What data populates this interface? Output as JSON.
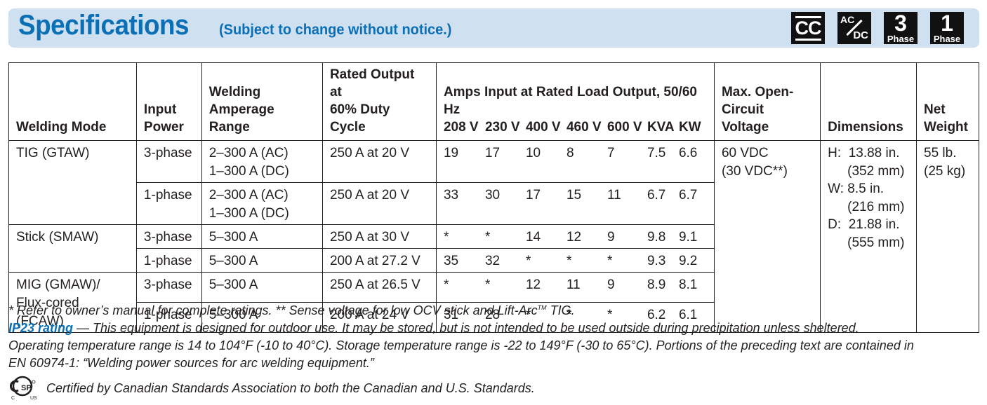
{
  "header": {
    "title": "Specifications",
    "subtitle": "(Subject to change without notice.)",
    "badges": {
      "cc": "CC",
      "ac": "AC",
      "dc": "DC",
      "three": "3",
      "one": "1",
      "phase": "Phase"
    }
  },
  "table": {
    "headers": {
      "mode": "Welding Mode",
      "input_1": "Input",
      "input_2": "Power",
      "range_1": "Welding",
      "range_2": "Amperage Range",
      "rated_1": "Rated Output at",
      "rated_2": "60% Duty Cycle",
      "amps": "Amps Input at Rated Load Output, 50/60 Hz",
      "volts": [
        "208 V",
        "230 V",
        "400 V",
        "460 V",
        "600 V",
        "KVA",
        "KW"
      ],
      "ocv_1": "Max. Open-",
      "ocv_2": "Circuit Voltage",
      "dim": "Dimensions",
      "weight_1": "Net",
      "weight_2": "Weight"
    },
    "tig": {
      "mode": "TIG (GTAW)",
      "rows": [
        {
          "input": "3-phase",
          "range_1": "2–300 A (AC)",
          "range_2": "1–300 A (DC)",
          "rated": "250 A at 20 V",
          "amps": [
            "19",
            "17",
            "10",
            "8",
            "7",
            "7.5",
            "6.6"
          ]
        },
        {
          "input": "1-phase",
          "range_1": "2–300 A (AC)",
          "range_2": "1–300 A (DC)",
          "rated": "250 A at 20 V",
          "amps": [
            "33",
            "30",
            "17",
            "15",
            "11",
            "6.7",
            "6.7"
          ]
        }
      ]
    },
    "stick": {
      "mode": "Stick (SMAW)",
      "rows": [
        {
          "input": "3-phase",
          "range": "5–300 A",
          "rated": "250 A at 30 V",
          "amps": [
            "*",
            "*",
            "14",
            "12",
            "9",
            "9.8",
            "9.1"
          ]
        },
        {
          "input": "1-phase",
          "range": "5–300 A",
          "rated": "200 A at 27.2 V",
          "amps": [
            "35",
            "32",
            "*",
            "*",
            "*",
            "9.3",
            "9.2"
          ]
        }
      ]
    },
    "mig": {
      "mode_1": "MIG (GMAW)/",
      "mode_2": "Flux-cored (FCAW)",
      "rows": [
        {
          "input": "3-phase",
          "range": "5–300 A",
          "rated": "250 A at 26.5 V",
          "amps": [
            "*",
            "*",
            "12",
            "11",
            "9",
            "8.9",
            "8.1"
          ]
        },
        {
          "input": "1-phase",
          "range": "5–300 A",
          "rated": "200 A at 24 V",
          "amps": [
            "31",
            "28",
            "*",
            "*",
            "*",
            "6.2",
            "6.1"
          ]
        }
      ]
    },
    "ocv_1": "60 VDC",
    "ocv_2": "(30 VDC**)",
    "dimensions": {
      "h_label": "H:",
      "h_in": "13.88 in.",
      "h_mm": "(352 mm)",
      "w_label": "W:",
      "w_in": "8.5 in.",
      "w_mm": "(216 mm)",
      "d_label": "D:",
      "d_in": "21.88 in.",
      "d_mm": "(555 mm)"
    },
    "weight_1": "55 lb.",
    "weight_2": "(25 kg)"
  },
  "notes": {
    "line1_a": "* Refer to owner’s manual for complete ratings.  ** Sense voltage for low OCV stick and Lift-Arc",
    "tm": "TM",
    "line1_b": " TIG.",
    "ip_label": "IP23 rating",
    "ip_text": " — This equipment is designed for outdoor use. It may be stored, but is not intended to be used outside during precipitation unless sheltered.",
    "line3": "Operating temperature range is 14 to 104°F (-10 to 40°C). Storage temperature range is -22 to 149°F (-30 to 65°C). Portions of the preceding text are contained in",
    "line4": "EN 60974-1: “Welding power sources for arc welding equipment.”",
    "csa": "Certified by Canadian Standards Association to both the Canadian and U.S. Standards.",
    "csa_logo_c": "C",
    "csa_logo_us": "US",
    "csa_logo_sp": "SP"
  }
}
